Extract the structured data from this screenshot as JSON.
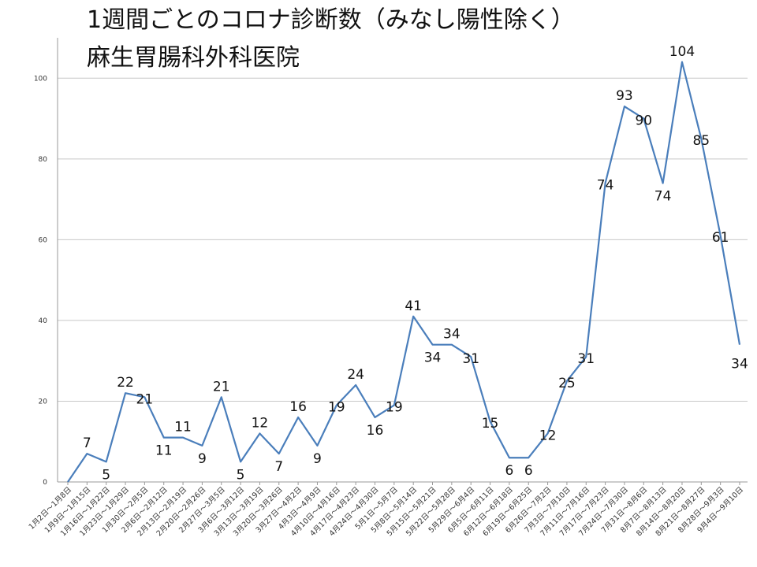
{
  "chart_data": {
    "type": "line",
    "title": "1週間ごとのコロナ診断数（みなし陽性除く）",
    "subtitle": "麻生胃腸科外科医院",
    "xlabel": "",
    "ylabel": "",
    "ylim": [
      0,
      110
    ],
    "yticks": [
      0,
      20,
      40,
      60,
      80,
      100
    ],
    "grid": true,
    "line_color": "#4a7ebb",
    "categories": [
      "1月2日～1月8日",
      "1月9日～1月15日",
      "1月16日～1月22日",
      "1月23日～1月29日",
      "1月30日～2月5日",
      "2月6日～2月12日",
      "2月13日～2月19日",
      "2月20日～2月26日",
      "2月27日～3月5日",
      "3月6日～3月12日",
      "3月13日～3月19日",
      "3月20日～3月26日",
      "3月27日～4月2日",
      "4月3日～4月9日",
      "4月10日～4月16日",
      "4月17日～4月23日",
      "4月24日～4月30日",
      "5月1日～5月7日",
      "5月8日～5月14日",
      "5月15日～5月21日",
      "5月22日～5月28日",
      "5月29日～6月4日",
      "6月5日～6月11日",
      "6月12日～6月18日",
      "6月19日～6月25日",
      "6月26日～7月2日",
      "7月3日～7月10日",
      "7月11日～7月16日",
      "7月17日～7月23日",
      "7月24日～7月30日",
      "7月31日～8月6日",
      "8月7日～8月13日",
      "8月14日～8月20日",
      "8月21日～8月27日",
      "8月28日～9月3日",
      "9月4日～9月10日"
    ],
    "values": [
      0,
      7,
      5,
      22,
      21,
      11,
      11,
      9,
      21,
      5,
      12,
      7,
      16,
      9,
      19,
      24,
      16,
      19,
      41,
      34,
      34,
      31,
      15,
      6,
      6,
      12,
      25,
      31,
      74,
      93,
      90,
      74,
      104,
      85,
      61,
      34
    ]
  }
}
